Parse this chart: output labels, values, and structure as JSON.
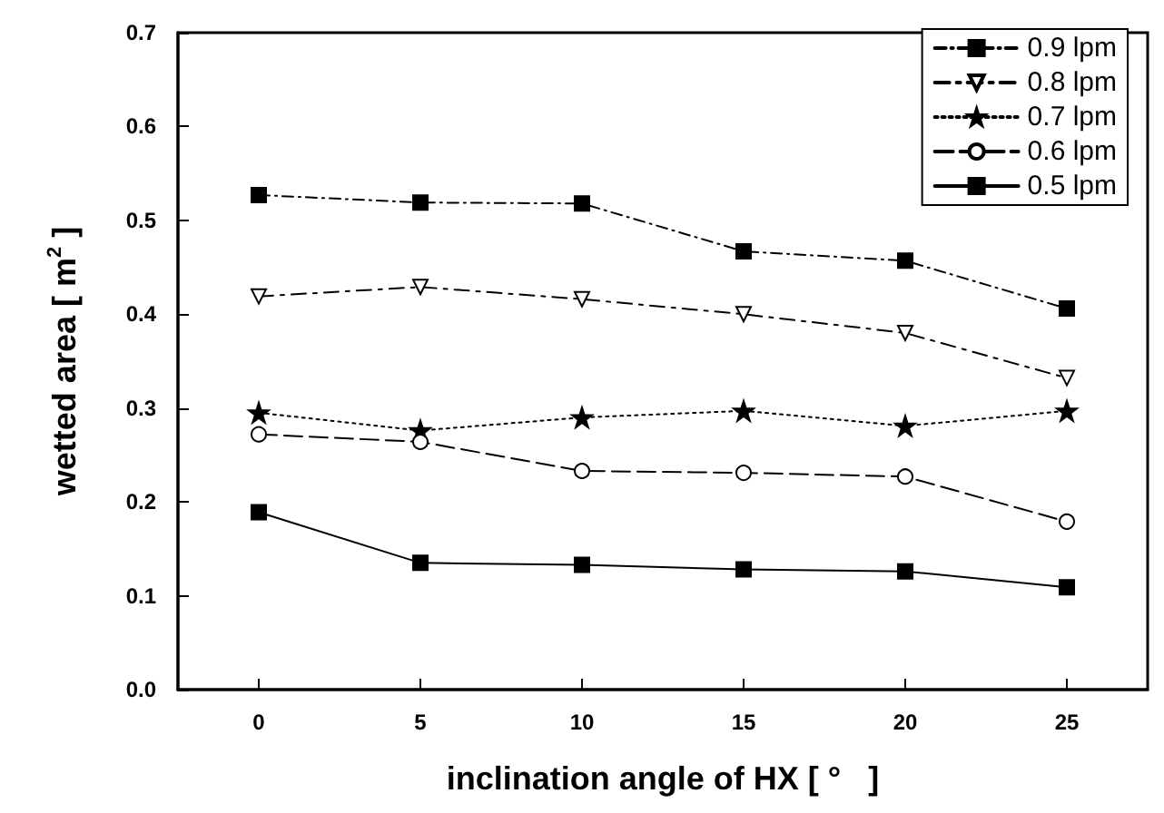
{
  "chart_data": {
    "type": "line",
    "xlabel": "inclination angle of HX [ °   ]",
    "ylabel": "wetted area [ m$^{2}$ ]",
    "x": [
      0,
      5,
      10,
      15,
      20,
      25
    ],
    "xlim": [
      -2.5,
      27.5
    ],
    "xticks": [
      0,
      5,
      10,
      15,
      20,
      25
    ],
    "ylim": [
      0,
      0.7
    ],
    "yticks": [
      {
        "value": 0,
        "label": "0.0"
      },
      0.1,
      0.2,
      0.3,
      0.4,
      0.5,
      0.6,
      0.7
    ],
    "grid": false,
    "legend": "top right",
    "series": [
      {
        "name": "0.9 lpm",
        "color": "#000000",
        "marker": "square",
        "line_style": "dashed",
        "values": [
          0.527,
          0.519,
          0.518,
          0.467,
          0.457,
          0.406
        ]
      },
      {
        "name": "0.8 lpm",
        "color": "#000000",
        "marker": "triangle",
        "line_style": "dashed",
        "values": [
          0.419,
          0.429,
          0.416,
          0.4,
          0.38,
          0.332
        ]
      },
      {
        "name": "0.7 lpm",
        "color": "#000000",
        "marker": "star",
        "line_style": "dotted",
        "values": [
          0.295,
          0.276,
          0.29,
          0.297,
          0.281,
          0.297
        ]
      },
      {
        "name": "0.6 lpm",
        "color": "#000000",
        "marker": "circle",
        "line_style": "dashed",
        "values": [
          0.272,
          0.264,
          0.233,
          0.231,
          0.227,
          0.179
        ]
      },
      {
        "name": "0.5 lpm",
        "color": "#000000",
        "marker": "square",
        "line_style": "solid",
        "values": [
          0.189,
          0.135,
          0.133,
          0.128,
          0.126,
          0.109
        ]
      }
    ]
  }
}
